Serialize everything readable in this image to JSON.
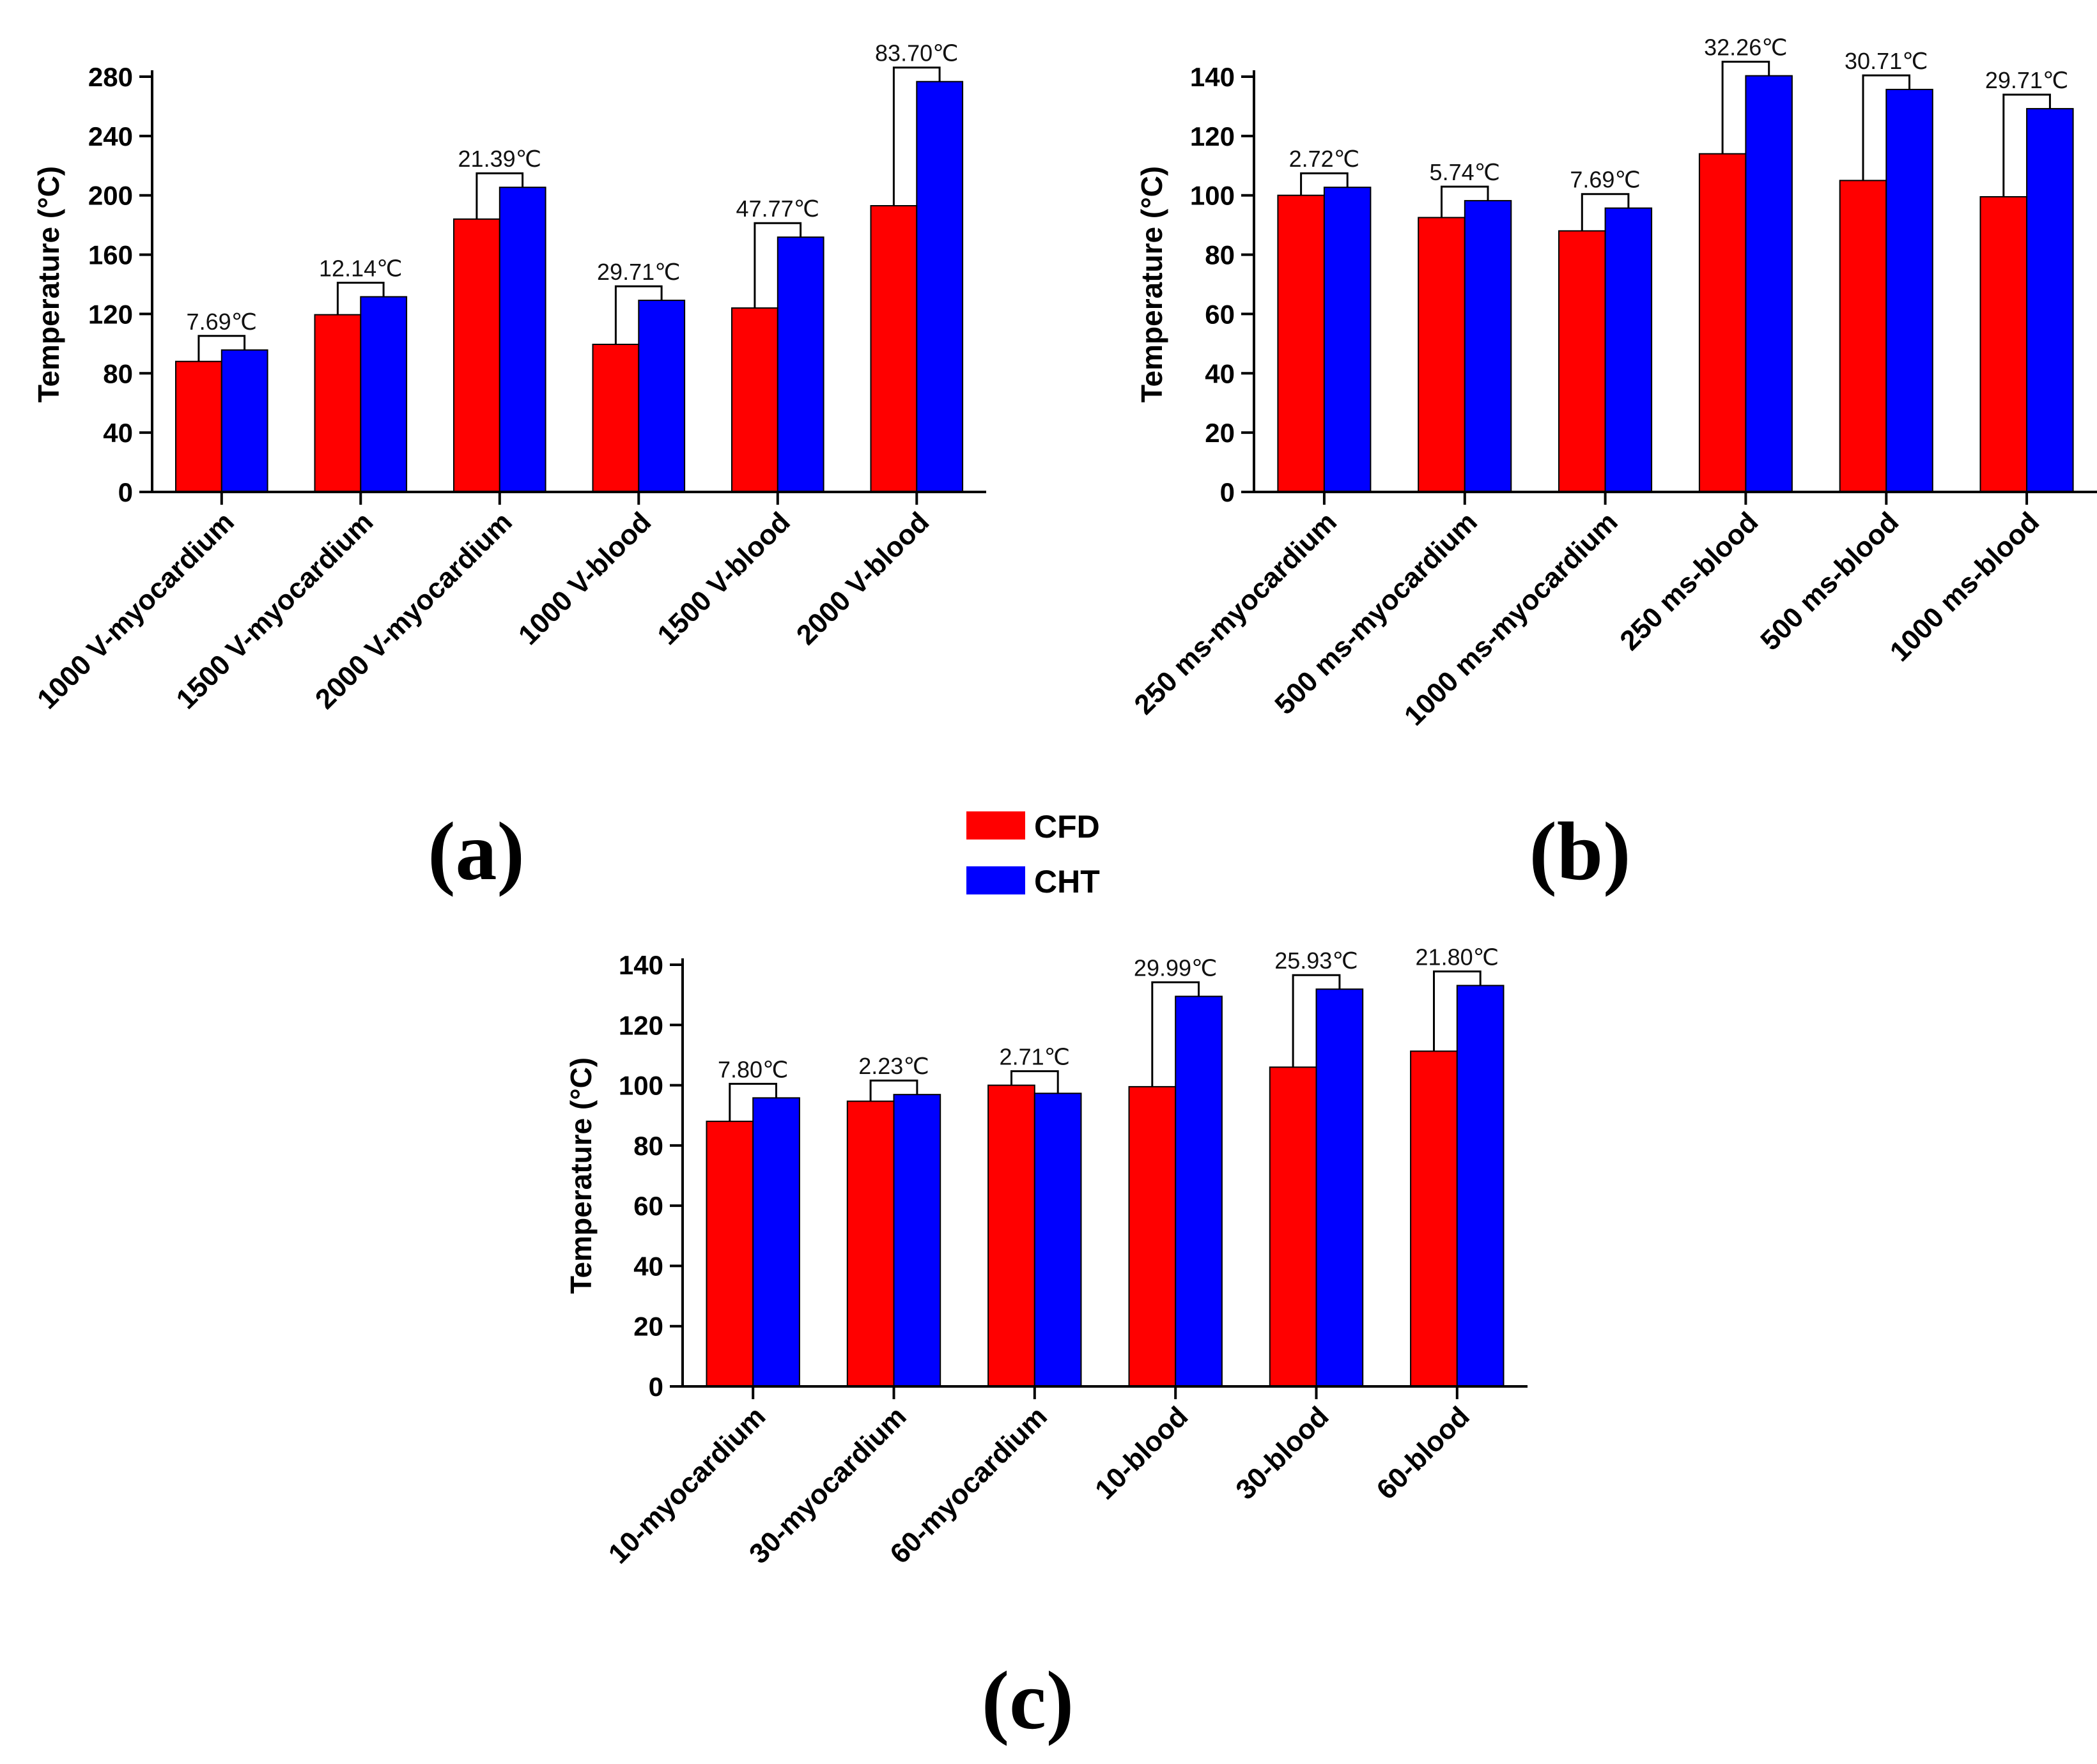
{
  "legend": {
    "items": [
      {
        "label": "CFD",
        "color": "#ff0000"
      },
      {
        "label": "CHT",
        "color": "#0000ff"
      }
    ]
  },
  "chart_data": [
    {
      "type": "bar",
      "panel_label": "(a)",
      "ylabel": "Temperature (°C)",
      "ylim": [
        0,
        280
      ],
      "yticks": [
        0,
        40,
        80,
        120,
        160,
        200,
        240,
        280
      ],
      "categories": [
        "1000 V-myocardium",
        "1500 V-myocardium",
        "2000 V-myocardium",
        "1000 V-blood",
        "1500 V-blood",
        "2000 V-blood"
      ],
      "series": [
        {
          "name": "CFD",
          "color": "#ff0000",
          "values": [
            88,
            119.5,
            184,
            99.5,
            124,
            193
          ]
        },
        {
          "name": "CHT",
          "color": "#0000ff",
          "values": [
            95.7,
            131.6,
            205.4,
            129.2,
            171.8,
            276.7
          ]
        }
      ],
      "annotations": [
        "7.69℃",
        "12.14℃",
        "21.39℃",
        "29.71℃",
        "47.77℃",
        "83.70℃"
      ],
      "grid": false
    },
    {
      "type": "bar",
      "panel_label": "(b)",
      "ylabel": "Temperature (°C)",
      "ylim": [
        0,
        140
      ],
      "yticks": [
        0,
        20,
        40,
        60,
        80,
        100,
        120,
        140
      ],
      "categories": [
        "250 ms-myocardium",
        "500 ms-myocardium",
        "1000 ms-myocardium",
        "250 ms-blood",
        "500 ms-blood",
        "1000 ms-blood"
      ],
      "series": [
        {
          "name": "CFD",
          "color": "#ff0000",
          "values": [
            100,
            92.5,
            88,
            114,
            105,
            99.5
          ]
        },
        {
          "name": "CHT",
          "color": "#0000ff",
          "values": [
            102.7,
            98.2,
            95.7,
            140.3,
            135.7,
            129.2
          ]
        }
      ],
      "annotations": [
        "2.72℃",
        "5.74℃",
        "7.69℃",
        "32.26℃",
        "30.71℃",
        "29.71℃"
      ],
      "grid": false
    },
    {
      "type": "bar",
      "panel_label": "(c)",
      "ylabel": "Temperature (°C)",
      "ylim": [
        0,
        140
      ],
      "yticks": [
        0,
        20,
        40,
        60,
        80,
        100,
        120,
        140
      ],
      "categories": [
        "10-myocardium",
        "30-myocardium",
        "60-myocardium",
        "10-blood",
        "30-blood",
        "60-blood"
      ],
      "series": [
        {
          "name": "CFD",
          "color": "#ff0000",
          "values": [
            88,
            94.7,
            100,
            99.5,
            106,
            111.3
          ]
        },
        {
          "name": "CHT",
          "color": "#0000ff",
          "values": [
            95.8,
            96.9,
            97.3,
            129.5,
            131.9,
            133.1
          ]
        }
      ],
      "annotations": [
        "7.80℃",
        "2.23℃",
        "2.71℃",
        "29.99℃",
        "25.93℃",
        "21.80℃"
      ],
      "grid": false
    }
  ]
}
